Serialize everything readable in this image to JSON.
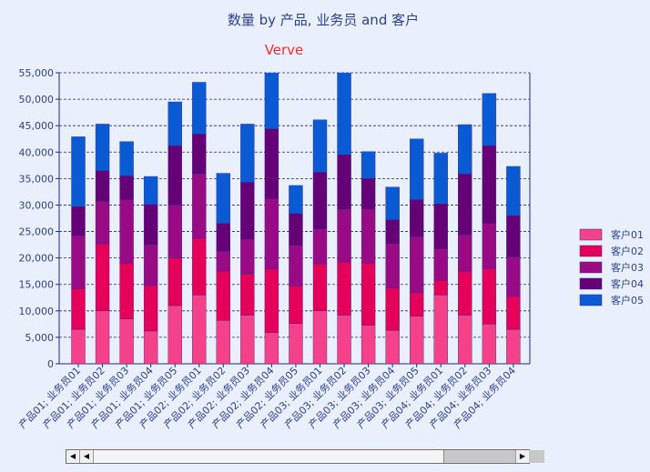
{
  "chart_data": {
    "type": "bar",
    "stacked": true,
    "title": "数量 by 产品, 业务员 and 客户",
    "subtitle": "Verve",
    "ylim": [
      0,
      55000
    ],
    "yticks": [
      "0",
      "5,000",
      "10,000",
      "15,000",
      "20,000",
      "25,000",
      "30,000",
      "35,000",
      "40,000",
      "45,000",
      "50,000",
      "55,000"
    ],
    "grid": true,
    "legend_position": "right",
    "categories": [
      "产品01; 业务员01",
      "产品01; 业务员02",
      "产品01; 业务员03",
      "产品01; 业务员04",
      "产品01; 业务员05",
      "产品02; 业务员01",
      "产品02; 业务员02",
      "产品02; 业务员03",
      "产品02; 业务员04",
      "产品02; 业务员05",
      "产品03; 业务员01",
      "产品03; 业务员02",
      "产品03; 业务员03",
      "产品03; 业务员04",
      "产品03; 业务员05",
      "产品04; 业务员01",
      "产品04; 业务员02",
      "产品04; 业务员03",
      "产品04; 业务员04"
    ],
    "series": [
      {
        "name": "客户01",
        "color": "#f5408a",
        "values": [
          6500,
          10000,
          8500,
          6200,
          11000,
          13000,
          8200,
          9200,
          5900,
          7600,
          10000,
          9200,
          7300,
          6300,
          9000,
          13000,
          9200,
          7500,
          6500
        ]
      },
      {
        "name": "客户02",
        "color": "#e5005a",
        "values": [
          7700,
          12700,
          10500,
          8600,
          9000,
          10700,
          9300,
          7800,
          12000,
          7100,
          8900,
          10000,
          11700,
          8000,
          4500,
          2800,
          8300,
          10500,
          6300
        ]
      },
      {
        "name": "客户03",
        "color": "#990a85",
        "values": [
          10000,
          8000,
          12000,
          7700,
          10000,
          12200,
          3800,
          6500,
          13300,
          7700,
          6600,
          10000,
          10200,
          8400,
          10500,
          5900,
          6900,
          8500,
          7400
        ]
      },
      {
        "name": "客户04",
        "color": "#660077",
        "values": [
          5500,
          5800,
          4500,
          7600,
          11200,
          7500,
          5200,
          10800,
          13200,
          6000,
          10700,
          10300,
          5800,
          4500,
          7000,
          8500,
          11500,
          14700,
          7800
        ]
      },
      {
        "name": "客户05",
        "color": "#0a5ad4",
        "values": [
          13200,
          8800,
          6500,
          5300,
          8300,
          9800,
          9500,
          11000,
          11600,
          5300,
          9900,
          16500,
          5100,
          6200,
          11500,
          9600,
          9300,
          9900,
          9300
        ]
      }
    ]
  }
}
